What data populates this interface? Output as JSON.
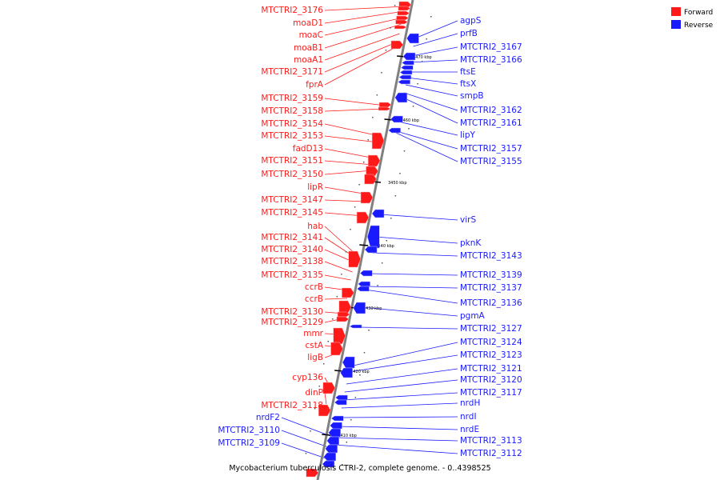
{
  "title": "Mycobacterium tuberculosis CTRI-2, complete genome. - 0..4398525",
  "legend": {
    "forward": {
      "label": "Forward",
      "color": "#ff1a1a"
    },
    "reverse": {
      "label": "Reverse",
      "color": "#1a1aff"
    }
  },
  "colors": {
    "forward": "#ff1a1a",
    "reverse": "#1a1aff",
    "backbone": "#808080"
  },
  "ticks": [
    "3470 kbp",
    "3460 kbp",
    "3450 kbp",
    "3440 kbp",
    "3430 kbp",
    "3420 kbp",
    "3410 kbp"
  ],
  "forward_labels": [
    "MTCTRI2_3176",
    "moaD1",
    "moaC",
    "moaB1",
    "moaA1",
    "MTCTRI2_3171",
    "fprA",
    "MTCTRI2_3159",
    "MTCTRI2_3158",
    "MTCTRI2_3154",
    "MTCTRI2_3153",
    "fadD13",
    "MTCTRI2_3151",
    "MTCTRI2_3150",
    "lipR",
    "MTCTRI2_3147",
    "MTCTRI2_3145",
    "hab",
    "MTCTRI2_3141",
    "MTCTRI2_3140",
    "MTCTRI2_3138",
    "MTCTRI2_3135",
    "ccrB",
    "ccrB",
    "MTCTRI2_3130",
    "MTCTRI2_3129",
    "mmr",
    "cstA",
    "ligB",
    "cyp136",
    "dinP",
    "MTCTRI2_3118"
  ],
  "reverse_labels": [
    "agpS",
    "prfB",
    "MTCTRI2_3167",
    "MTCTRI2_3166",
    "ftsE",
    "ftsX",
    "smpB",
    "MTCTRI2_3162",
    "MTCTRI2_3161",
    "lipY",
    "MTCTRI2_3157",
    "MTCTRI2_3155",
    "virS",
    "pknK",
    "MTCTRI2_3143",
    "MTCTRI2_3139",
    "MTCTRI2_3137",
    "MTCTRI2_3136",
    "pgmA",
    "MTCTRI2_3127",
    "MTCTRI2_3124",
    "MTCTRI2_3123",
    "MTCTRI2_3121",
    "MTCTRI2_3120",
    "MTCTRI2_3117",
    "nrdH",
    "nrdI",
    "nrdE",
    "MTCTRI2_3113",
    "MTCTRI2_3112"
  ],
  "reverse_left_labels": [
    "nrdF2",
    "MTCTRI2_3110",
    "MTCTRI2_3109"
  ]
}
